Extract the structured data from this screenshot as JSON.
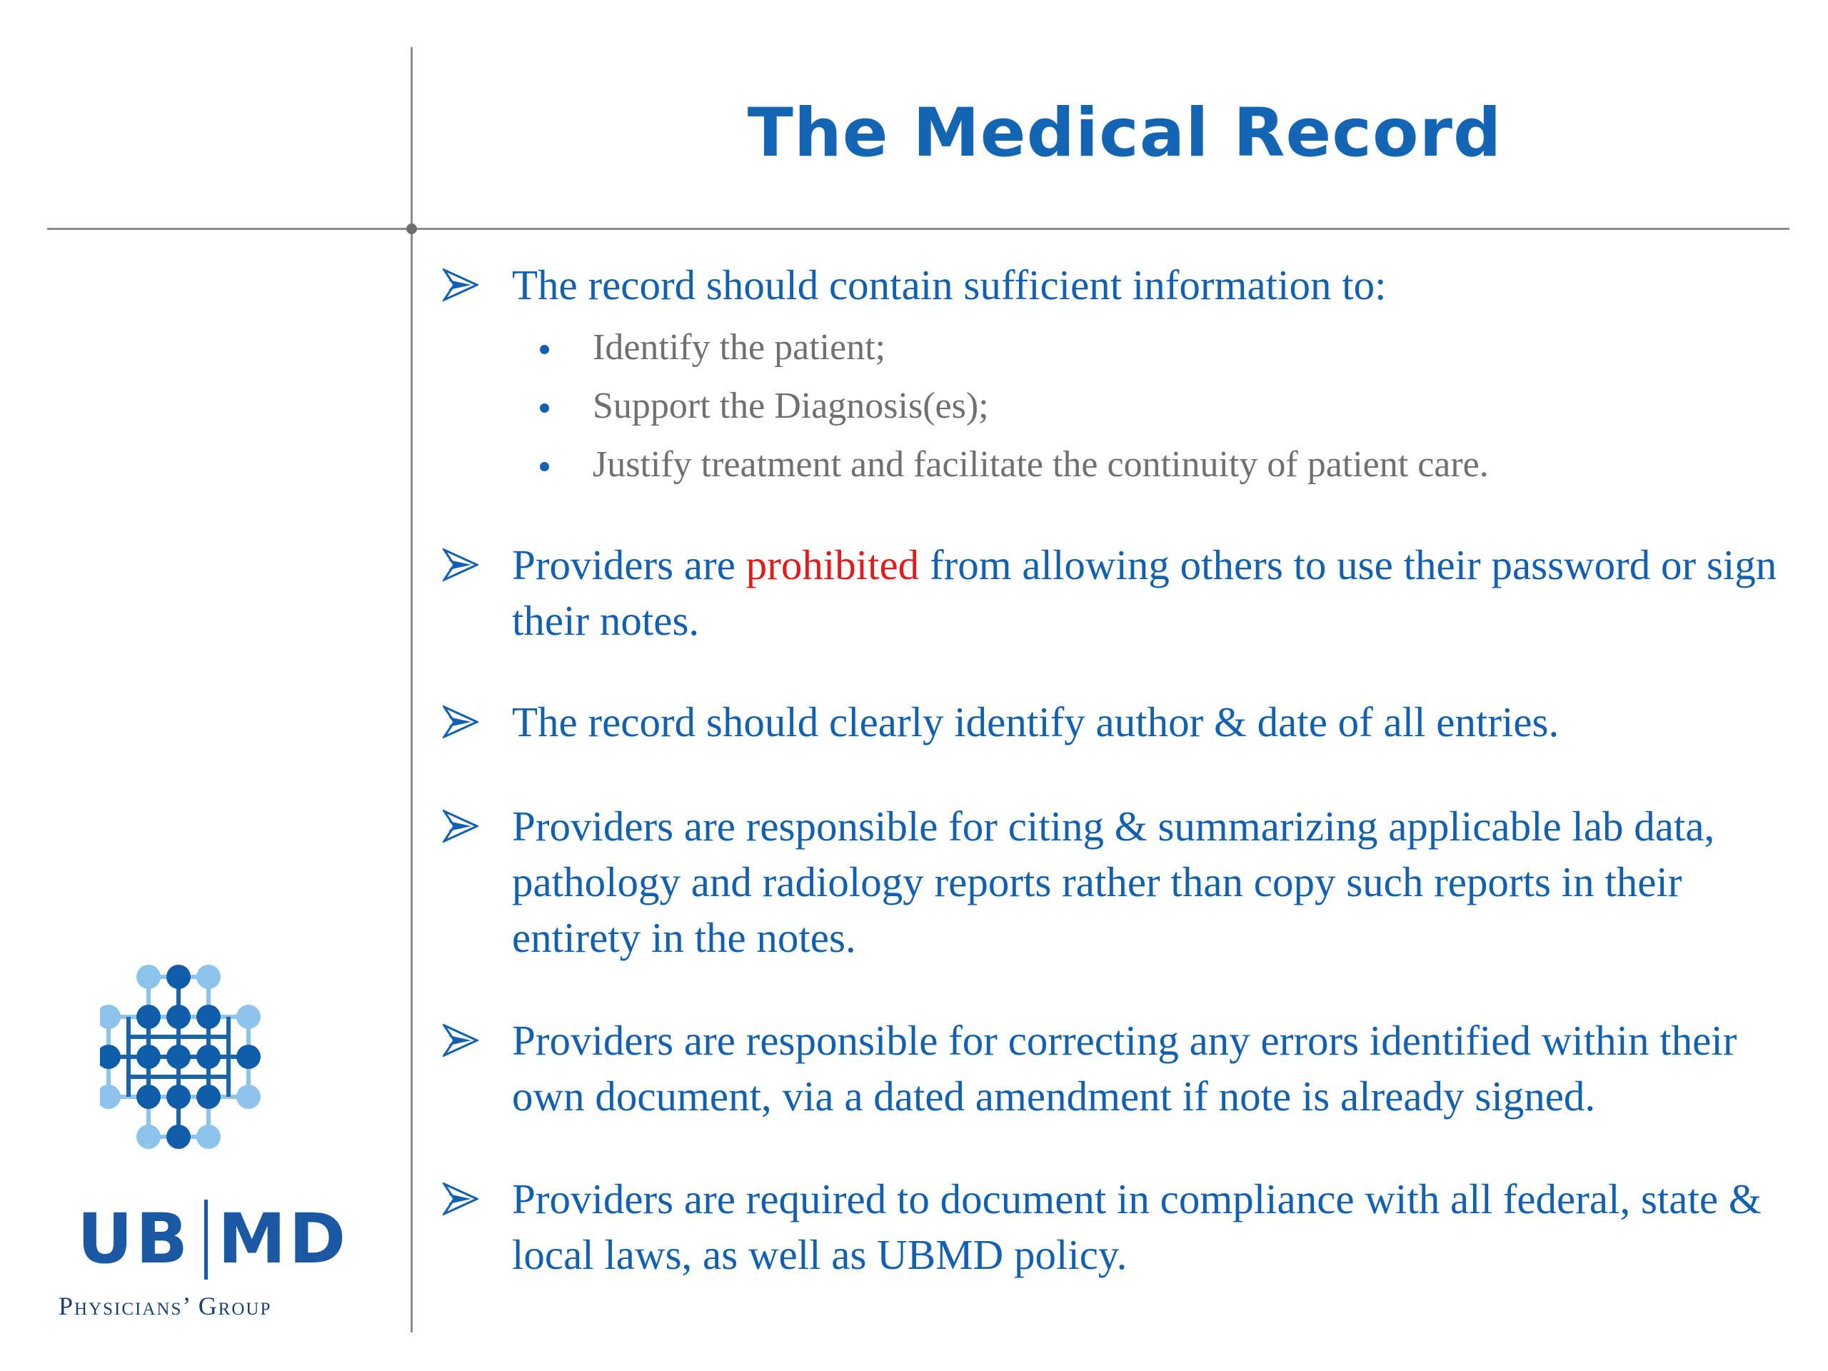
{
  "slide": {
    "title": "The Medical Record"
  },
  "bullets": [
    {
      "text": "The record should contain sufficient information to:",
      "sub_items": [
        "Identify the patient;",
        "Support the Diagnosis(es);",
        "Justify treatment and facilitate the continuity of patient care."
      ]
    },
    {
      "before": "Providers are ",
      "highlight": "prohibited",
      "after": " from allowing others to use their password or sign their notes."
    },
    {
      "text": "The record should clearly identify author & date of all entries."
    },
    {
      "text": "Providers are responsible for citing & summarizing applicable lab data, pathology and radiology reports rather than copy such reports in their entirety in the notes."
    },
    {
      "text": "Providers are responsible for correcting any errors identified within their own document, via a dated amendment if note is already signed."
    },
    {
      "text": "Providers are required to document in compliance with all federal, state & local laws, as well as UBMD policy."
    }
  ],
  "logo": {
    "left_text": "UB",
    "right_text": "MD",
    "subtitle": "Physicians’ Group"
  },
  "colors": {
    "title_blue": "#1565b5",
    "text_blue": "#1260b2",
    "sub_text_gray": "#707070",
    "highlight_red": "#e31b1b",
    "divider_gray": "#8c8c8c",
    "logo_dark_blue": "#0f5ca8",
    "logo_light_blue": "#7cb8e6"
  },
  "icons": {
    "bullet": "arrow-bullet-icon",
    "sub_bullet": "dot-bullet-icon",
    "logo_mark": "molecule-grid-logo"
  }
}
